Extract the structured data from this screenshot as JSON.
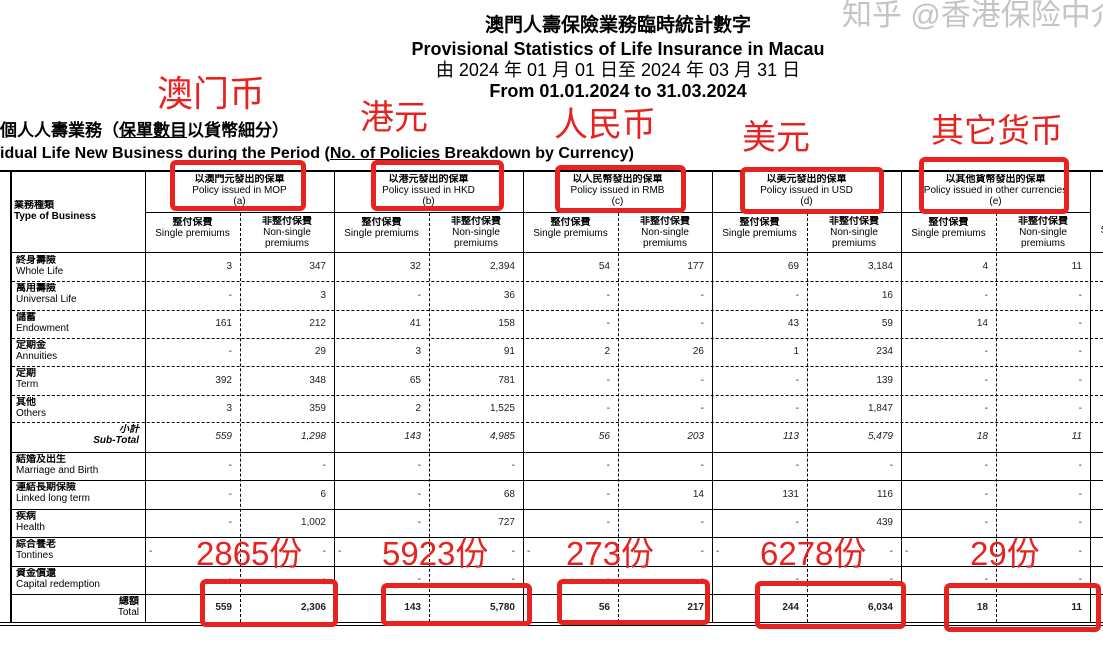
{
  "header": {
    "title_zh": "澳門人壽保險業務臨時統計數字",
    "title_en": "Provisional Statistics of Life Insurance in Macau",
    "period_zh": "由 2024 年 01 月 01 日至 2024 年 03 月 31 日",
    "period_en": "From 01.01.2024 to 31.03.2024"
  },
  "section": {
    "zh_prefix": "個人人壽業務（",
    "zh_underlined": "保單數目",
    "zh_suffix": "以貨幣細分）",
    "en_prefix": "idual Life New Business during the Period (",
    "en_underlined": "No. of Policies",
    "en_suffix": " Breakdown by Currency)"
  },
  "table": {
    "type_header_zh": "業務種類",
    "type_header_en": "Type of Business",
    "currencies": [
      {
        "zh": "以澳門元發出的保單",
        "en": "Policy issued in MOP",
        "code": "(a)"
      },
      {
        "zh": "以港元發出的保單",
        "en": "Policy issued in HKD",
        "code": "(b)"
      },
      {
        "zh": "以人民幣發出的保單",
        "en": "Policy issued in RMB",
        "code": "(c)"
      },
      {
        "zh": "以美元發出的保單",
        "en": "Policy issued in USD",
        "code": "(d)"
      },
      {
        "zh": "以其他貨幣發出的保單",
        "en": "Policy issued in other currencies",
        "code": "(e)"
      }
    ],
    "single_zh": "整付保費",
    "single_en": "Single premiums",
    "nonsingle_zh": "非整付保費",
    "nonsingle_en": "Non-single premiums",
    "rows": [
      {
        "zh": "終身壽險",
        "en": "Whole Life",
        "values": [
          "3",
          "347",
          "32",
          "2,394",
          "54",
          "177",
          "69",
          "3,184",
          "4",
          "11"
        ]
      },
      {
        "zh": "萬用壽險",
        "en": "Universal Life",
        "values": [
          "-",
          "3",
          "-",
          "36",
          "-",
          "-",
          "-",
          "16",
          "-",
          "-"
        ]
      },
      {
        "zh": "儲蓄",
        "en": "Endowment",
        "values": [
          "161",
          "212",
          "41",
          "158",
          "-",
          "-",
          "43",
          "59",
          "14",
          "-"
        ]
      },
      {
        "zh": "定期金",
        "en": "Annuities",
        "values": [
          "-",
          "29",
          "3",
          "91",
          "2",
          "26",
          "1",
          "234",
          "-",
          "-"
        ]
      },
      {
        "zh": "定期",
        "en": "Term",
        "values": [
          "392",
          "348",
          "65",
          "781",
          "-",
          "-",
          "-",
          "139",
          "-",
          "-"
        ]
      },
      {
        "zh": "其他",
        "en": "Others",
        "values": [
          "3",
          "359",
          "2",
          "1,525",
          "-",
          "-",
          "-",
          "1,847",
          "-",
          "-"
        ]
      },
      {
        "zh": "小計",
        "en": "Sub-Total",
        "subtotal": true,
        "values": [
          "559",
          "1,298",
          "143",
          "4,985",
          "56",
          "203",
          "113",
          "5,479",
          "18",
          "11"
        ]
      },
      {
        "zh": "結婚及出生",
        "en": "Marriage and Birth",
        "values": [
          "-",
          "-",
          "-",
          "-",
          "-",
          "-",
          "-",
          "-",
          "-",
          "-"
        ]
      },
      {
        "zh": "連結長期保險",
        "en": "Linked long term",
        "values": [
          "-",
          "6",
          "-",
          "68",
          "-",
          "14",
          "131",
          "116",
          "-",
          "-"
        ]
      },
      {
        "zh": "疾病",
        "en": "Health",
        "values": [
          "-",
          "1,002",
          "-",
          "727",
          "-",
          "-",
          "-",
          "439",
          "-",
          "-"
        ]
      },
      {
        "zh": "綜合養老",
        "en": "Tontines",
        "values": [
          "-",
          "-",
          "-",
          "-",
          "-",
          "-",
          "-",
          "-",
          "-",
          "-"
        ]
      },
      {
        "zh": "資金償還",
        "en": "Capital redemption",
        "values": [
          "-",
          "-",
          "-",
          "-",
          "-",
          "-",
          "-",
          "-",
          "-",
          "-"
        ]
      },
      {
        "zh": "總額",
        "en": "Total",
        "total": true,
        "values": [
          "559",
          "2,306",
          "143",
          "5,780",
          "56",
          "217",
          "244",
          "6,034",
          "18",
          "11"
        ]
      }
    ]
  },
  "annotations": {
    "currency_labels": [
      "澳门币",
      "港元",
      "人民币",
      "美元",
      "其它货币"
    ],
    "total_labels": [
      "2865份",
      "5923份",
      "273份",
      "6278份",
      "29份"
    ],
    "color": "#e8221f"
  },
  "watermark": "知乎 @香港保险中介"
}
